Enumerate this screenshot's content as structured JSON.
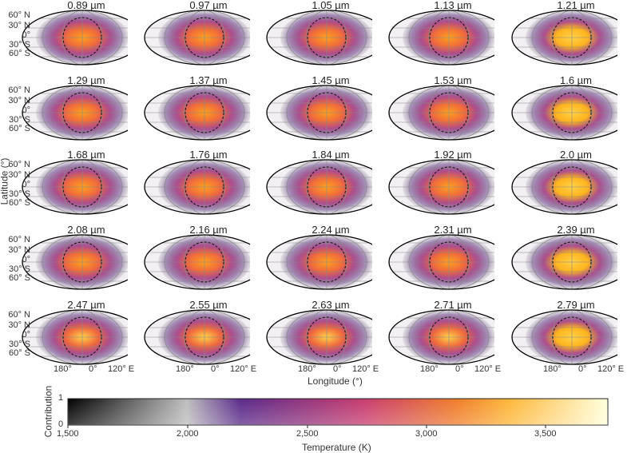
{
  "panels": [
    {
      "title": "0.89 µm"
    },
    {
      "title": "0.97 µm"
    },
    {
      "title": "1.05 µm"
    },
    {
      "title": "1.13 µm"
    },
    {
      "title": "1.21 µm"
    },
    {
      "title": "1.29 µm"
    },
    {
      "title": "1.37 µm"
    },
    {
      "title": "1.45 µm"
    },
    {
      "title": "1.53 µm"
    },
    {
      "title": "1.6 µm"
    },
    {
      "title": "1.68 µm"
    },
    {
      "title": "1.76 µm"
    },
    {
      "title": "1.84 µm"
    },
    {
      "title": "1.92 µm"
    },
    {
      "title": "2.0 µm"
    },
    {
      "title": "2.08 µm"
    },
    {
      "title": "2.16 µm"
    },
    {
      "title": "2.24 µm"
    },
    {
      "title": "2.31 µm"
    },
    {
      "title": "2.39 µm"
    },
    {
      "title": "2.47 µm"
    },
    {
      "title": "2.55 µm"
    },
    {
      "title": "2.63 µm"
    },
    {
      "title": "2.71 µm"
    },
    {
      "title": "2.79 µm"
    }
  ],
  "lat_labels": [
    "60° N",
    "30° N",
    "0°",
    "30° S",
    "60° S"
  ],
  "lon_labels": [
    "180°",
    "0°",
    "120° E"
  ],
  "y_axis_title": "Latitude (°)",
  "x_axis_title": "Longitude (°)",
  "colorbar": {
    "xlabel": "Temperature (K)",
    "ylabel": "Contribution",
    "ticks": [
      "1,500",
      "2,000",
      "2,500",
      "3,000",
      "3,500"
    ],
    "y_ticks": [
      "0",
      "1"
    ],
    "colors": [
      "#000000",
      "#bdbdbd",
      "#5a2a8a",
      "#c83c6e",
      "#f07d2a",
      "#fdb83a",
      "#ffffdc"
    ]
  },
  "colors": {
    "hot": "#fdb41e",
    "warm": "#f06a3c",
    "mid": "#a0327a",
    "cool": "#4a1e72",
    "grid": "#888888",
    "outline": "#000000"
  }
}
